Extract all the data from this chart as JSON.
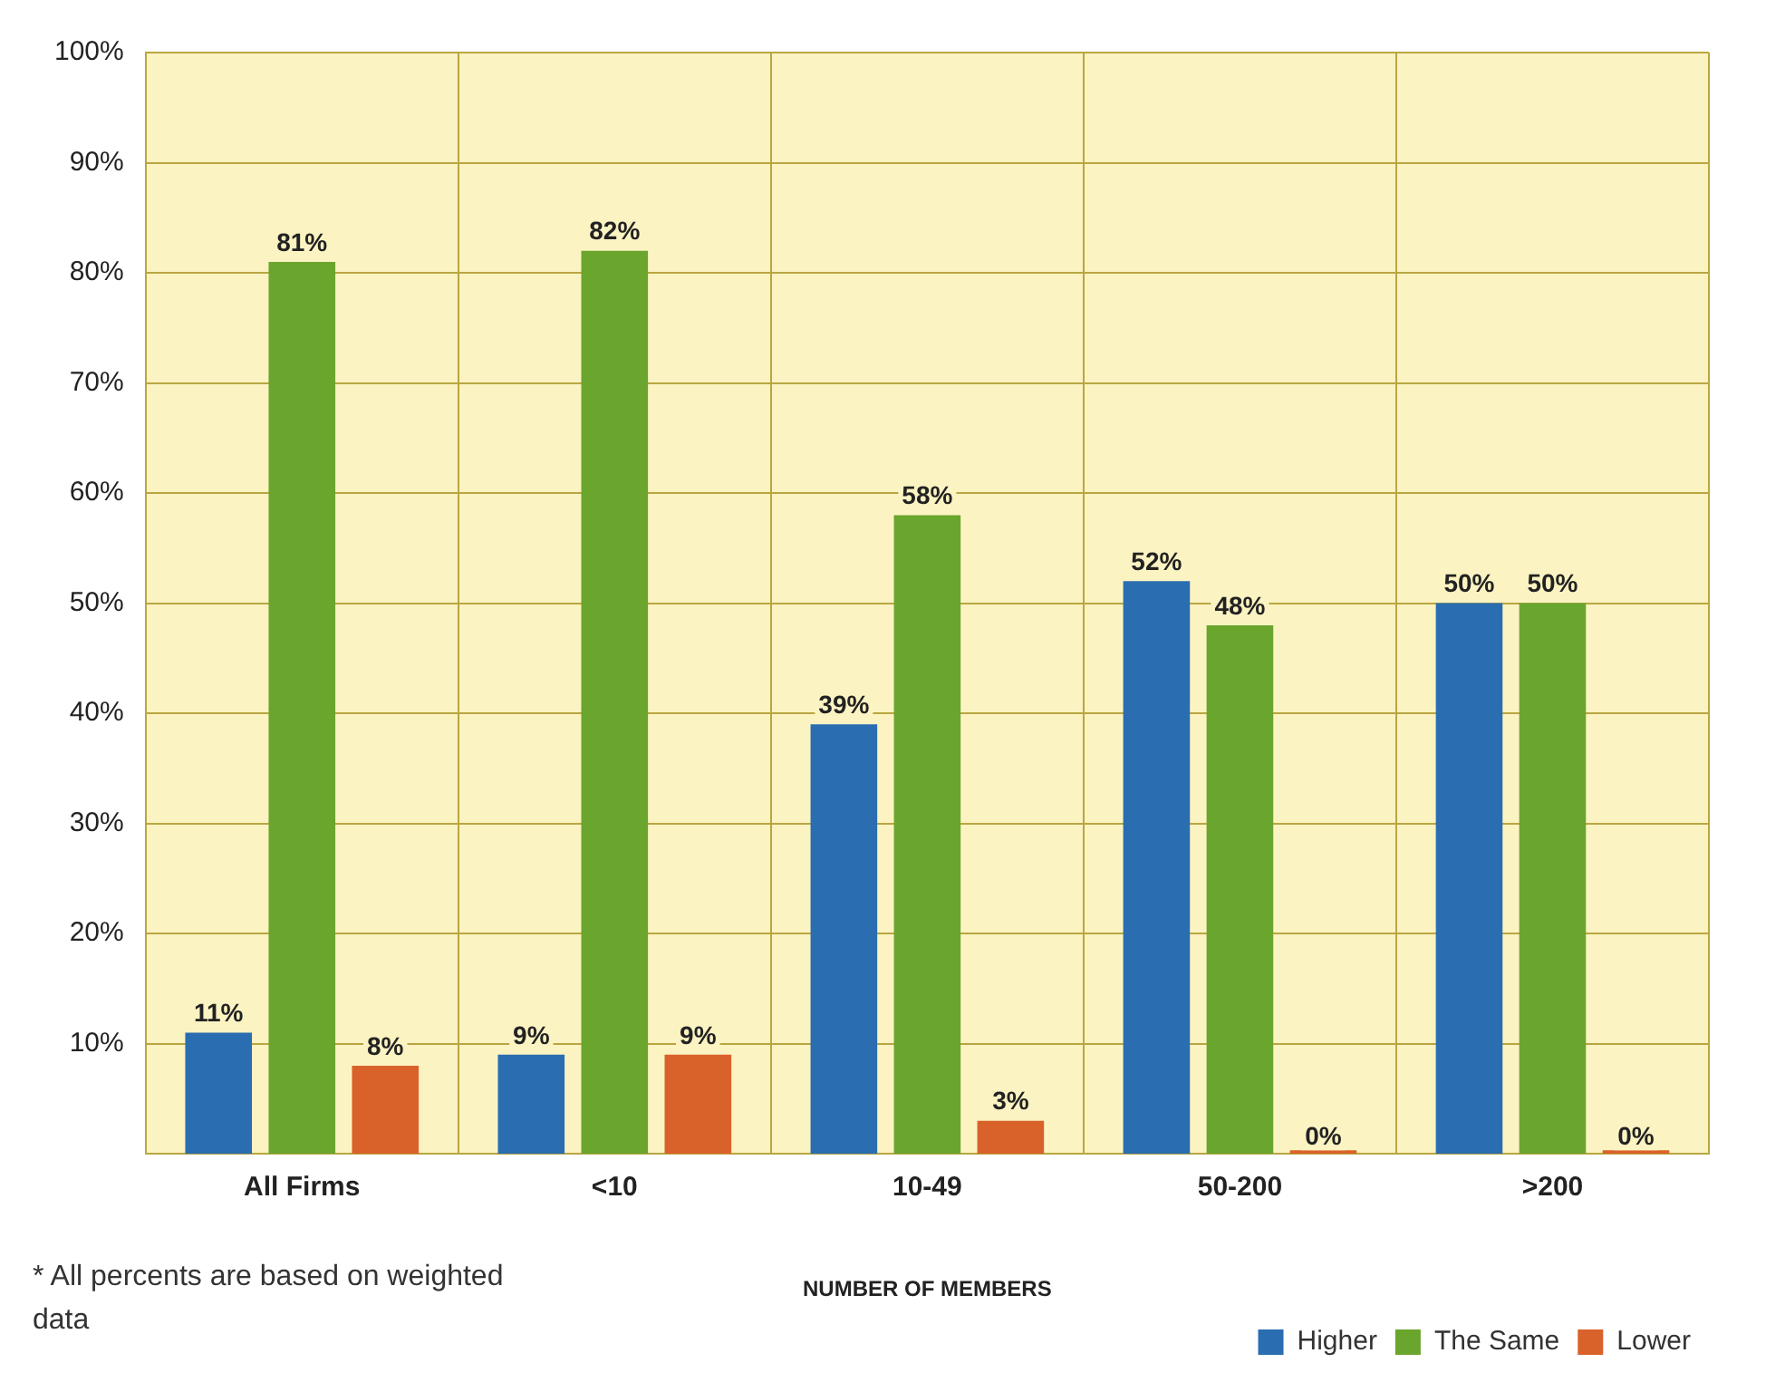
{
  "chart_data": {
    "type": "bar",
    "xlabel": "NUMBER OF MEMBERS",
    "categories": [
      "All Firms",
      "<10",
      "10-49",
      "50-200",
      ">200"
    ],
    "series": [
      {
        "name": "Higher",
        "color": "#2a6db0",
        "values": [
          11,
          9,
          39,
          52,
          50
        ],
        "value_labels": [
          "11%",
          "9%",
          "39%",
          "52%",
          "50%"
        ]
      },
      {
        "name": "The Same",
        "color": "#6aa52e",
        "values": [
          81,
          82,
          58,
          48,
          50
        ],
        "value_labels": [
          "81%",
          "82%",
          "58%",
          "48%",
          "50%"
        ]
      },
      {
        "name": "Lower",
        "color": "#d9622a",
        "values": [
          8,
          9,
          3,
          0,
          0
        ],
        "value_labels": [
          "8%",
          "9%",
          "3%",
          "0%",
          "0%"
        ]
      }
    ],
    "ylim": [
      0,
      100
    ],
    "yticks": [
      {
        "value": 10,
        "label": "10%"
      },
      {
        "value": 20,
        "label": "20%"
      },
      {
        "value": 30,
        "label": "30%"
      },
      {
        "value": 40,
        "label": "40%"
      },
      {
        "value": 50,
        "label": "50%"
      },
      {
        "value": 60,
        "label": "60%"
      },
      {
        "value": 70,
        "label": "70%"
      },
      {
        "value": 80,
        "label": "80%"
      },
      {
        "value": 90,
        "label": "90%"
      },
      {
        "value": 100,
        "label": "100%"
      }
    ],
    "grid": true,
    "legend": "bottom right",
    "annotations": [
      "* All percents are based on weighted data"
    ]
  }
}
